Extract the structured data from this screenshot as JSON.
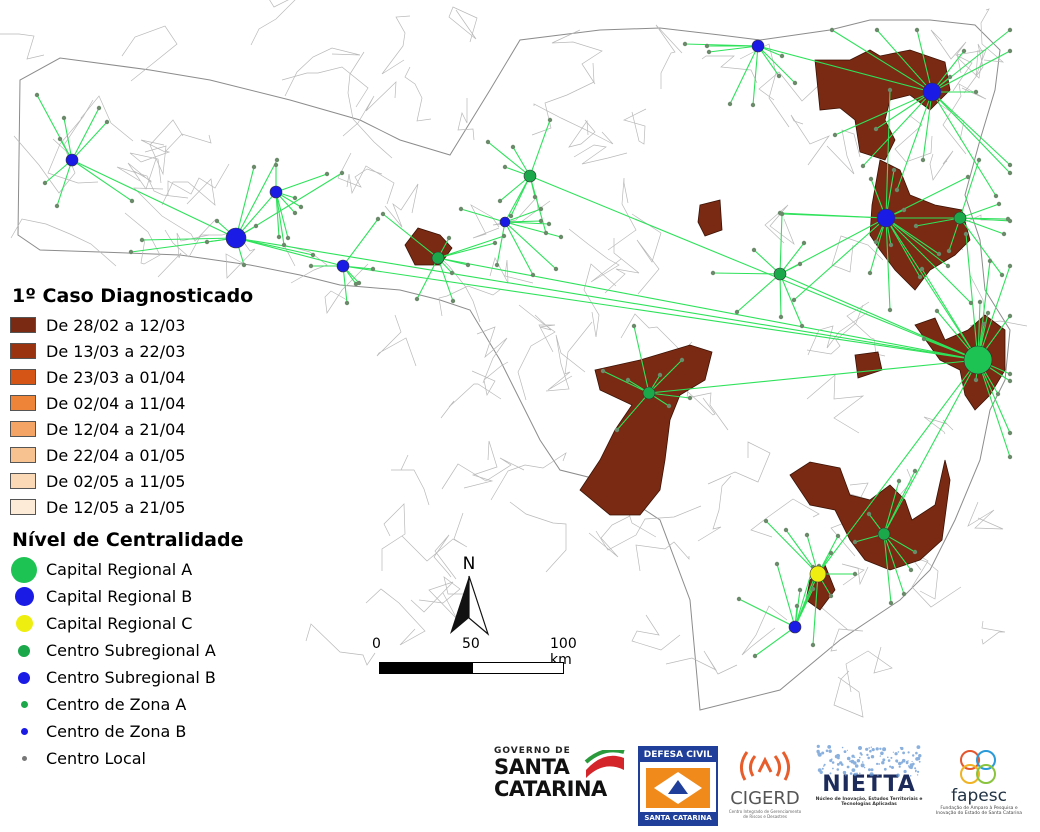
{
  "legend_case": {
    "title": "1º Caso Diagnosticado",
    "items": [
      {
        "label": "De 28/02 a 12/03",
        "color": "#7a2a12"
      },
      {
        "label": "De 13/03 a 22/03",
        "color": "#9a3410"
      },
      {
        "label": "De 23/03 a 01/04",
        "color": "#d45515"
      },
      {
        "label": "De 02/04 a 11/04",
        "color": "#ee8438"
      },
      {
        "label": "De 12/04 a 21/04",
        "color": "#f4a565"
      },
      {
        "label": "De 22/04 a 01/05",
        "color": "#f8c290"
      },
      {
        "label": "De 02/05 a 11/05",
        "color": "#fbd9b7"
      },
      {
        "label": "De 12/05 a 21/05",
        "color": "#fdebd8"
      }
    ]
  },
  "legend_centrality": {
    "title": "Nível de Centralidade",
    "items": [
      {
        "label": "Capital Regional A",
        "color": "#1ec453",
        "size": 26
      },
      {
        "label": "Capital Regional B",
        "color": "#1b1be6",
        "size": 19
      },
      {
        "label": "Capital Regional C",
        "color": "#eeee10",
        "size": 17
      },
      {
        "label": "Centro Subregional A",
        "color": "#1aa84a",
        "size": 12
      },
      {
        "label": "Centro Subregional B",
        "color": "#1b1be6",
        "size": 12
      },
      {
        "label": "Centro de Zona A",
        "color": "#1aa84a",
        "size": 7
      },
      {
        "label": "Centro de Zona B",
        "color": "#1b1be6",
        "size": 7
      },
      {
        "label": "Centro Local",
        "color": "#777777",
        "size": 5
      }
    ]
  },
  "compass": {
    "letter": "N"
  },
  "scale": {
    "labels": [
      "0",
      "50",
      "100 km"
    ]
  },
  "logos": {
    "gov_small": "GOVERNO DE",
    "gov_line1": "SANTA",
    "gov_line2": "CATARINA",
    "dc_top": "DEFESA CIVIL",
    "dc_bottom": "SANTA CATARINA",
    "cigerd": "CIGERD",
    "cigerd_sub": "Centro Integrado de Gerenciamento de Riscos e Desastres",
    "nietta": "NIETTA",
    "nietta_sub": "Núcleo de Inovação, Estudos Territoriais e Tecnologias Aplicadas",
    "fapesc": "fapesc",
    "fapesc_sub": "Fundação de Amparo à Pesquisa e Inovação do Estado de Santa Catarina"
  },
  "map_colors": {
    "boundary": "#8c8c8c",
    "link": "#2ee25a",
    "case_fill": "#7a2a12"
  }
}
